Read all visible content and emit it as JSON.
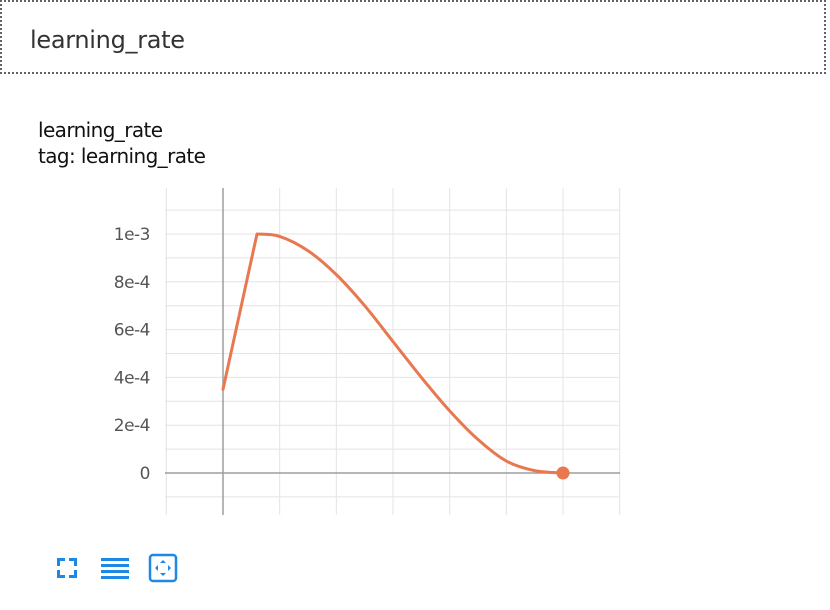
{
  "section": {
    "title": "learning_rate"
  },
  "card": {
    "title": "learning_rate",
    "tag": "tag: learning_rate"
  },
  "colors": {
    "series": "#e8784f",
    "grid": "#e4e4e4",
    "axis": "#9e9e9e",
    "toolbar": "#1e88e5"
  },
  "toolbar": {
    "buttons": [
      {
        "name": "fullscreen-button",
        "icon": "fullscreen-icon"
      },
      {
        "name": "toggle-log-scale-button",
        "icon": "lines-icon"
      },
      {
        "name": "fit-domain-button",
        "icon": "fit-to-domain-icon"
      }
    ]
  },
  "chart_data": {
    "type": "line",
    "title": "",
    "xlabel": "",
    "ylabel": "",
    "ylim": [
      -5e-05,
      0.0011
    ],
    "yticks": [
      {
        "value": 0.001,
        "label": "1e-3"
      },
      {
        "value": 0.0008,
        "label": "8e-4"
      },
      {
        "value": 0.0006,
        "label": "6e-4"
      },
      {
        "value": 0.0004,
        "label": "4e-4"
      },
      {
        "value": 0.0002,
        "label": "2e-4"
      },
      {
        "value": 0,
        "label": "0"
      }
    ],
    "grid": true,
    "legend": "none",
    "series": [
      {
        "values": [
          [
            0.0,
            0.00035
          ],
          [
            0.6,
            0.001
          ],
          [
            1.0,
            0.00099
          ],
          [
            1.5,
            0.00093
          ],
          [
            2.0,
            0.00083
          ],
          [
            2.5,
            0.0007
          ],
          [
            3.0,
            0.00055
          ],
          [
            3.5,
            0.0004
          ],
          [
            4.0,
            0.00026
          ],
          [
            4.5,
            0.00014
          ],
          [
            5.0,
            5e-05
          ],
          [
            5.5,
            1e-05
          ],
          [
            6.0,
            0.0
          ]
        ]
      }
    ]
  }
}
